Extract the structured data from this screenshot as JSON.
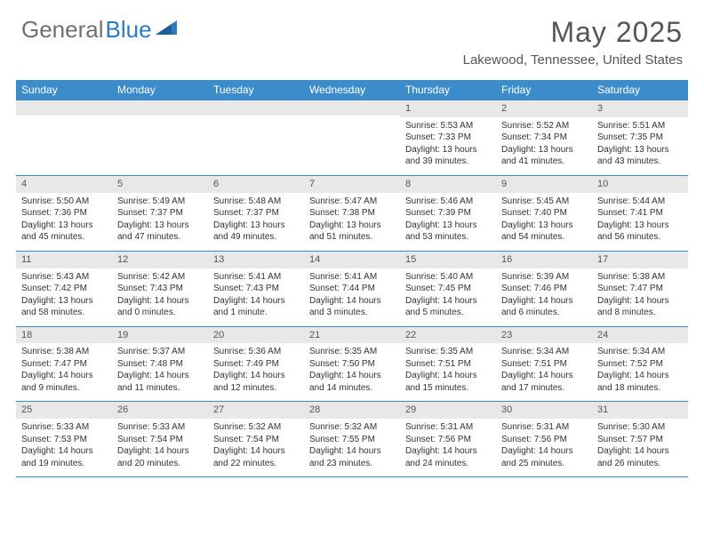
{
  "brand": {
    "part1": "General",
    "part2": "Blue"
  },
  "title": "May 2025",
  "location": "Lakewood, Tennessee, United States",
  "colors": {
    "header_bg": "#3c8ccc",
    "header_text": "#ffffff",
    "daynum_bg": "#e8e8e8",
    "border": "#3c8ccc",
    "title_color": "#555555",
    "body_text": "#333333",
    "logo_gray": "#707070",
    "logo_blue": "#2f7ac0"
  },
  "typography": {
    "title_fontsize": 32,
    "subtitle_fontsize": 15,
    "dow_fontsize": 12,
    "cell_fontsize": 10
  },
  "days_of_week": [
    "Sunday",
    "Monday",
    "Tuesday",
    "Wednesday",
    "Thursday",
    "Friday",
    "Saturday"
  ],
  "weeks": [
    [
      {
        "empty": true
      },
      {
        "empty": true
      },
      {
        "empty": true
      },
      {
        "empty": true
      },
      {
        "n": "1",
        "sunrise": "Sunrise: 5:53 AM",
        "sunset": "Sunset: 7:33 PM",
        "daylight": "Daylight: 13 hours and 39 minutes."
      },
      {
        "n": "2",
        "sunrise": "Sunrise: 5:52 AM",
        "sunset": "Sunset: 7:34 PM",
        "daylight": "Daylight: 13 hours and 41 minutes."
      },
      {
        "n": "3",
        "sunrise": "Sunrise: 5:51 AM",
        "sunset": "Sunset: 7:35 PM",
        "daylight": "Daylight: 13 hours and 43 minutes."
      }
    ],
    [
      {
        "n": "4",
        "sunrise": "Sunrise: 5:50 AM",
        "sunset": "Sunset: 7:36 PM",
        "daylight": "Daylight: 13 hours and 45 minutes."
      },
      {
        "n": "5",
        "sunrise": "Sunrise: 5:49 AM",
        "sunset": "Sunset: 7:37 PM",
        "daylight": "Daylight: 13 hours and 47 minutes."
      },
      {
        "n": "6",
        "sunrise": "Sunrise: 5:48 AM",
        "sunset": "Sunset: 7:37 PM",
        "daylight": "Daylight: 13 hours and 49 minutes."
      },
      {
        "n": "7",
        "sunrise": "Sunrise: 5:47 AM",
        "sunset": "Sunset: 7:38 PM",
        "daylight": "Daylight: 13 hours and 51 minutes."
      },
      {
        "n": "8",
        "sunrise": "Sunrise: 5:46 AM",
        "sunset": "Sunset: 7:39 PM",
        "daylight": "Daylight: 13 hours and 53 minutes."
      },
      {
        "n": "9",
        "sunrise": "Sunrise: 5:45 AM",
        "sunset": "Sunset: 7:40 PM",
        "daylight": "Daylight: 13 hours and 54 minutes."
      },
      {
        "n": "10",
        "sunrise": "Sunrise: 5:44 AM",
        "sunset": "Sunset: 7:41 PM",
        "daylight": "Daylight: 13 hours and 56 minutes."
      }
    ],
    [
      {
        "n": "11",
        "sunrise": "Sunrise: 5:43 AM",
        "sunset": "Sunset: 7:42 PM",
        "daylight": "Daylight: 13 hours and 58 minutes."
      },
      {
        "n": "12",
        "sunrise": "Sunrise: 5:42 AM",
        "sunset": "Sunset: 7:43 PM",
        "daylight": "Daylight: 14 hours and 0 minutes."
      },
      {
        "n": "13",
        "sunrise": "Sunrise: 5:41 AM",
        "sunset": "Sunset: 7:43 PM",
        "daylight": "Daylight: 14 hours and 1 minute."
      },
      {
        "n": "14",
        "sunrise": "Sunrise: 5:41 AM",
        "sunset": "Sunset: 7:44 PM",
        "daylight": "Daylight: 14 hours and 3 minutes."
      },
      {
        "n": "15",
        "sunrise": "Sunrise: 5:40 AM",
        "sunset": "Sunset: 7:45 PM",
        "daylight": "Daylight: 14 hours and 5 minutes."
      },
      {
        "n": "16",
        "sunrise": "Sunrise: 5:39 AM",
        "sunset": "Sunset: 7:46 PM",
        "daylight": "Daylight: 14 hours and 6 minutes."
      },
      {
        "n": "17",
        "sunrise": "Sunrise: 5:38 AM",
        "sunset": "Sunset: 7:47 PM",
        "daylight": "Daylight: 14 hours and 8 minutes."
      }
    ],
    [
      {
        "n": "18",
        "sunrise": "Sunrise: 5:38 AM",
        "sunset": "Sunset: 7:47 PM",
        "daylight": "Daylight: 14 hours and 9 minutes."
      },
      {
        "n": "19",
        "sunrise": "Sunrise: 5:37 AM",
        "sunset": "Sunset: 7:48 PM",
        "daylight": "Daylight: 14 hours and 11 minutes."
      },
      {
        "n": "20",
        "sunrise": "Sunrise: 5:36 AM",
        "sunset": "Sunset: 7:49 PM",
        "daylight": "Daylight: 14 hours and 12 minutes."
      },
      {
        "n": "21",
        "sunrise": "Sunrise: 5:35 AM",
        "sunset": "Sunset: 7:50 PM",
        "daylight": "Daylight: 14 hours and 14 minutes."
      },
      {
        "n": "22",
        "sunrise": "Sunrise: 5:35 AM",
        "sunset": "Sunset: 7:51 PM",
        "daylight": "Daylight: 14 hours and 15 minutes."
      },
      {
        "n": "23",
        "sunrise": "Sunrise: 5:34 AM",
        "sunset": "Sunset: 7:51 PM",
        "daylight": "Daylight: 14 hours and 17 minutes."
      },
      {
        "n": "24",
        "sunrise": "Sunrise: 5:34 AM",
        "sunset": "Sunset: 7:52 PM",
        "daylight": "Daylight: 14 hours and 18 minutes."
      }
    ],
    [
      {
        "n": "25",
        "sunrise": "Sunrise: 5:33 AM",
        "sunset": "Sunset: 7:53 PM",
        "daylight": "Daylight: 14 hours and 19 minutes."
      },
      {
        "n": "26",
        "sunrise": "Sunrise: 5:33 AM",
        "sunset": "Sunset: 7:54 PM",
        "daylight": "Daylight: 14 hours and 20 minutes."
      },
      {
        "n": "27",
        "sunrise": "Sunrise: 5:32 AM",
        "sunset": "Sunset: 7:54 PM",
        "daylight": "Daylight: 14 hours and 22 minutes."
      },
      {
        "n": "28",
        "sunrise": "Sunrise: 5:32 AM",
        "sunset": "Sunset: 7:55 PM",
        "daylight": "Daylight: 14 hours and 23 minutes."
      },
      {
        "n": "29",
        "sunrise": "Sunrise: 5:31 AM",
        "sunset": "Sunset: 7:56 PM",
        "daylight": "Daylight: 14 hours and 24 minutes."
      },
      {
        "n": "30",
        "sunrise": "Sunrise: 5:31 AM",
        "sunset": "Sunset: 7:56 PM",
        "daylight": "Daylight: 14 hours and 25 minutes."
      },
      {
        "n": "31",
        "sunrise": "Sunrise: 5:30 AM",
        "sunset": "Sunset: 7:57 PM",
        "daylight": "Daylight: 14 hours and 26 minutes."
      }
    ]
  ]
}
